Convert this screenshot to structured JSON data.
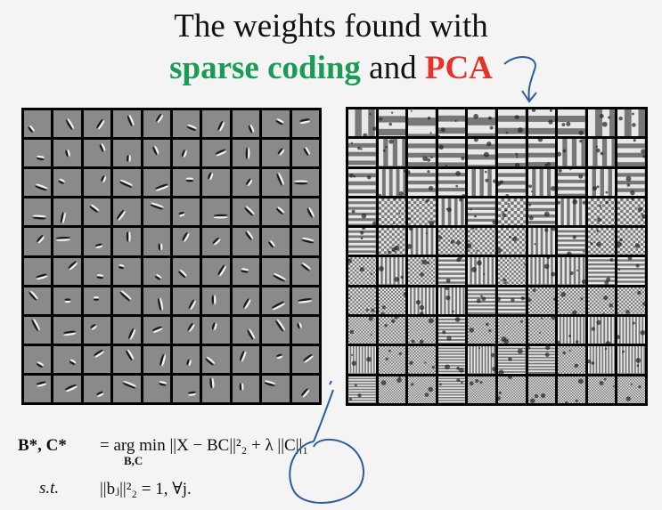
{
  "title": {
    "line1": "The weights found with",
    "line2_part1": "sparse coding",
    "line2_part2": " and ",
    "line2_part3": "PCA"
  },
  "formula": {
    "row1_lhs": "B*, C*",
    "row1_rhs": "= arg min ||X − BC||²₂ + λ ||C||₁",
    "row1_sub": "B,C",
    "row2_lhs": "s.t.",
    "row2_rhs": "||bⱼ||²₂ = 1, ∀j."
  },
  "colors": {
    "green": "#1c9b57",
    "red": "#e5322a",
    "annotation": "#2e5c9a"
  }
}
